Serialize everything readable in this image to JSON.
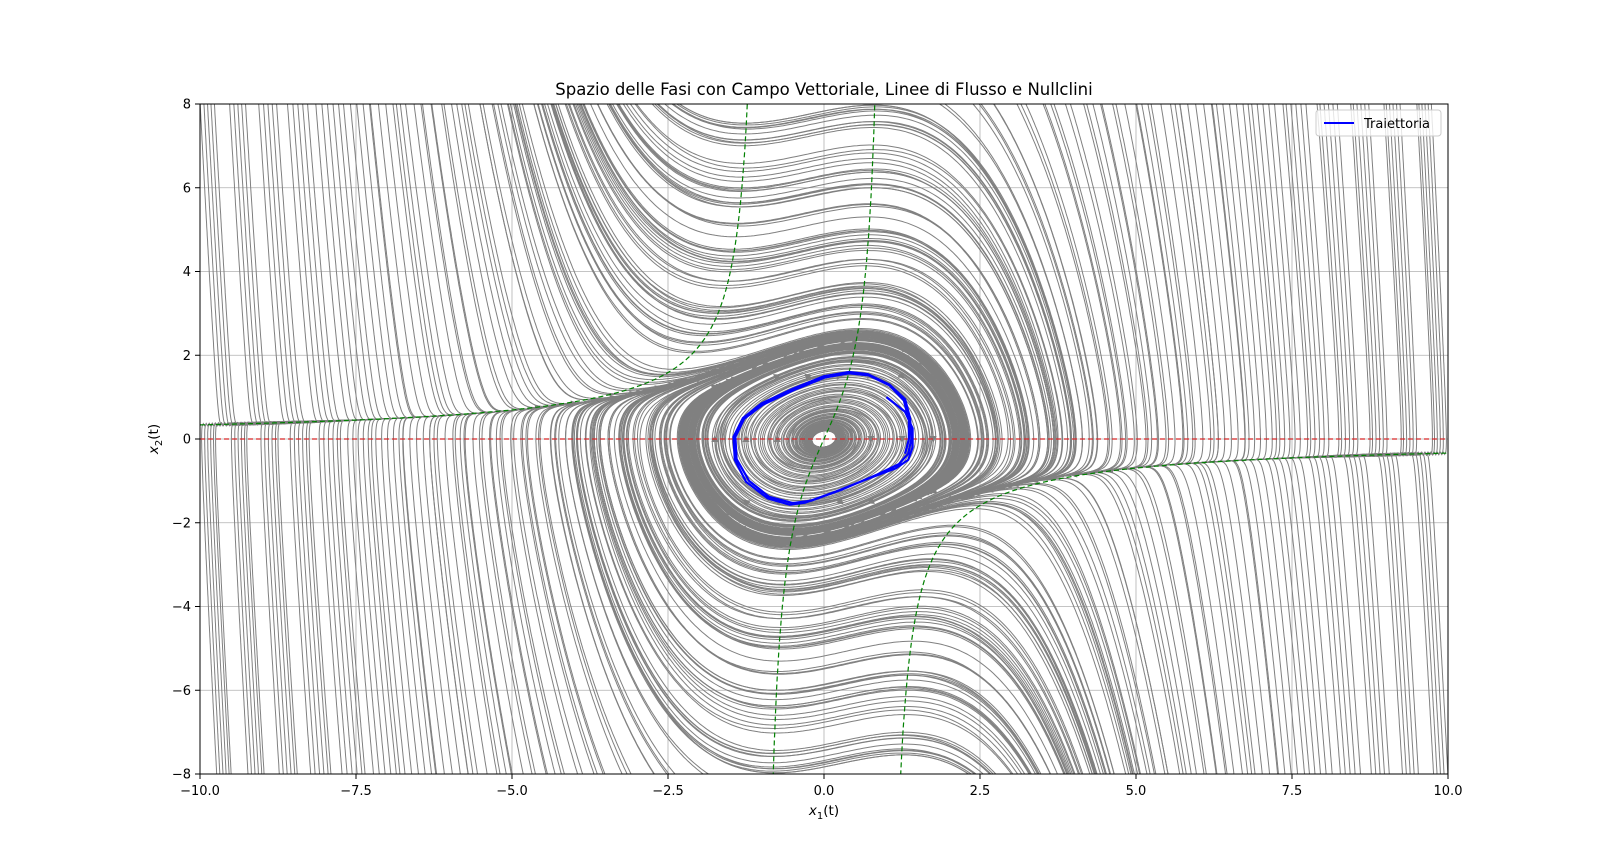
{
  "chart_data": {
    "type": "line",
    "title": "Spazio delle Fasi con Campo Vettoriale, Linee di Flusso e Nullclini",
    "xlabel": "x",
    "xlabel_sub": "1",
    "xlabel_suffix": "(t)",
    "ylabel": "x",
    "ylabel_sub": "2",
    "ylabel_suffix": "(t)",
    "xlim": [
      -10,
      10
    ],
    "ylim": [
      -8,
      8
    ],
    "x_ticks": [
      -10,
      -7.5,
      -5,
      -2.5,
      0,
      2.5,
      5,
      7.5,
      10
    ],
    "x_tick_labels": [
      "−10.0",
      "−7.5",
      "−5.0",
      "−2.5",
      "0.0",
      "2.5",
      "5.0",
      "7.5",
      "10.0"
    ],
    "y_ticks": [
      -8,
      -6,
      -4,
      -2,
      0,
      2,
      4,
      6,
      8
    ],
    "y_tick_labels": [
      "−8",
      "−6",
      "−4",
      "−2",
      "0",
      "2",
      "4",
      "6",
      "8"
    ],
    "grid": true,
    "legend_position": "top-right",
    "series": [
      {
        "name": "Traiettoria",
        "color": "#0000ff",
        "points": [
          [
            1.0,
            1.0
          ],
          [
            1.3,
            0.65
          ],
          [
            1.42,
            0.25
          ],
          [
            1.42,
            -0.2
          ],
          [
            1.35,
            -0.5
          ],
          [
            1.15,
            -0.7
          ],
          [
            0.7,
            -0.95
          ],
          [
            0.2,
            -1.25
          ],
          [
            -0.3,
            -1.52
          ],
          [
            -0.55,
            -1.57
          ],
          [
            -0.9,
            -1.42
          ],
          [
            -1.25,
            -1.02
          ],
          [
            -1.43,
            -0.5
          ],
          [
            -1.45,
            0.05
          ],
          [
            -1.3,
            0.5
          ],
          [
            -1.0,
            0.85
          ],
          [
            -0.5,
            1.2
          ],
          [
            0.0,
            1.5
          ],
          [
            0.4,
            1.6
          ],
          [
            0.7,
            1.55
          ],
          [
            1.05,
            1.3
          ],
          [
            1.3,
            0.95
          ],
          [
            1.38,
            0.5
          ],
          [
            1.4,
            0.0
          ],
          [
            1.35,
            -0.35
          ],
          [
            1.2,
            -0.6
          ],
          [
            0.85,
            -0.85
          ],
          [
            0.3,
            -1.2
          ],
          [
            -0.2,
            -1.47
          ],
          [
            -0.5,
            -1.53
          ],
          [
            -0.88,
            -1.38
          ],
          [
            -1.2,
            -1.0
          ],
          [
            -1.4,
            -0.48
          ],
          [
            -1.42,
            0.05
          ],
          [
            -1.28,
            0.48
          ],
          [
            -0.98,
            0.82
          ],
          [
            -0.48,
            1.17
          ],
          [
            0.02,
            1.47
          ],
          [
            0.4,
            1.57
          ],
          [
            0.72,
            1.52
          ],
          [
            1.05,
            1.28
          ],
          [
            1.28,
            0.92
          ],
          [
            1.36,
            0.45
          ],
          [
            1.36,
            0.0
          ],
          [
            1.3,
            -0.35
          ]
        ]
      }
    ],
    "nullclines": {
      "horizontal_color": "#d62728",
      "curve_color": "#008000"
    },
    "vector_field_color": "#808080"
  }
}
